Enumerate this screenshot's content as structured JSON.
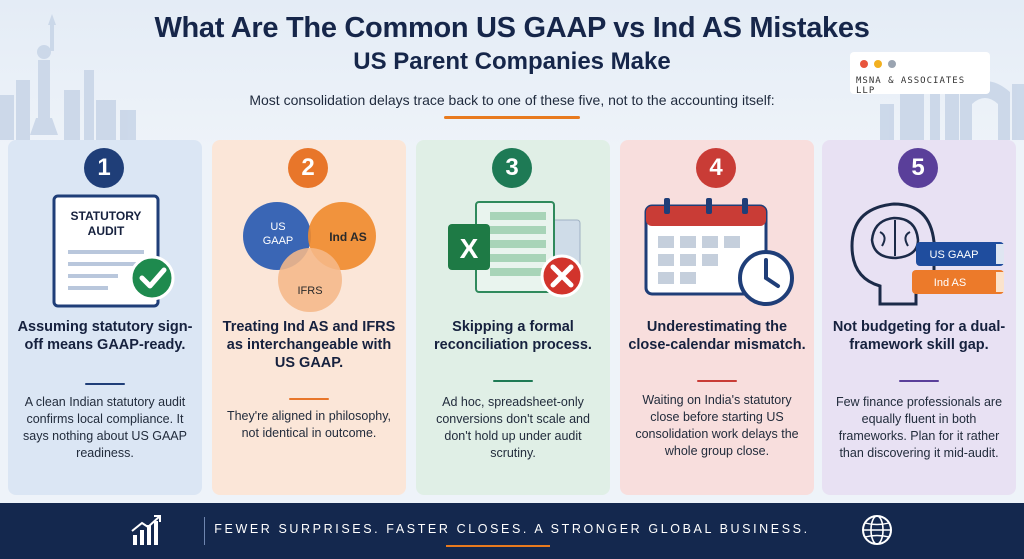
{
  "header": {
    "title": "What Are The Common US GAAP vs Ind AS Mistakes",
    "subtitle": "US Parent Companies Make",
    "lede": "Most consolidation delays trace back to one of these five, not to the accounting itself:"
  },
  "brand": {
    "name": "MSNA & ASSOCIATES LLP",
    "dot_colors": [
      "#e8553d",
      "#f2b020",
      "#9aa4b1"
    ]
  },
  "cards": [
    {
      "number": "1",
      "accent": "#1f3e78",
      "illustration_label": [
        "STATUTORY",
        "AUDIT"
      ],
      "title": "Assuming statutory sign-off means GAAP-ready.",
      "body": "A clean Indian statutory audit confirms local compliance. It says nothing about US GAAP readiness."
    },
    {
      "number": "2",
      "accent": "#e8762a",
      "illustration_labels": [
        "US GAAP",
        "Ind AS",
        "IFRS"
      ],
      "title": "Treating Ind AS and IFRS as interchangeable with US GAAP.",
      "body": "They're aligned in philosophy, not identical in outcome."
    },
    {
      "number": "3",
      "accent": "#1e7a55",
      "illustration_label": "X",
      "title": "Skipping a formal reconciliation process.",
      "body": "Ad hoc, spreadsheet-only conversions don't scale and don't hold up under audit scrutiny."
    },
    {
      "number": "4",
      "accent": "#c93c36",
      "title": "Underestimating the close-calendar mismatch.",
      "body": "Waiting on India's statutory close before starting US consolidation work delays the whole group close."
    },
    {
      "number": "5",
      "accent": "#5a3f9a",
      "illustration_labels": [
        "US GAAP",
        "Ind AS"
      ],
      "title": "Not budgeting for a dual-framework skill gap.",
      "body": "Few finance professionals are equally fluent in both frameworks. Plan for it rather than discovering it mid-audit."
    }
  ],
  "footer": {
    "tagline": "FEWER SURPRISES. FASTER CLOSES. A STRONGER GLOBAL BUSINESS.",
    "left_icon": "growth-chart-icon",
    "right_icon": "globe-icon"
  }
}
